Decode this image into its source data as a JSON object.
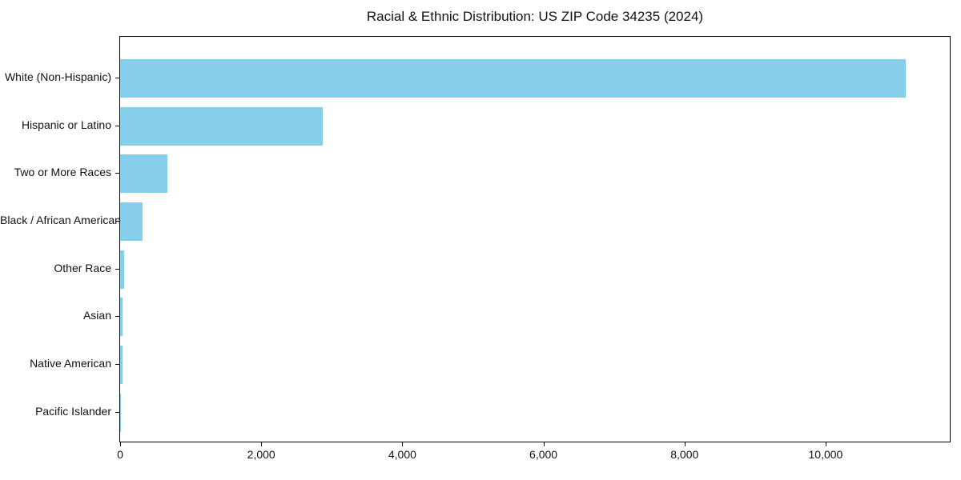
{
  "title": "Racial & Ethnic Distribution: US ZIP Code 34235 (2024)",
  "chart_data": {
    "type": "bar",
    "orientation": "horizontal",
    "title": "Racial & Ethnic Distribution: US ZIP Code 34235 (2024)",
    "xlabel": "",
    "ylabel": "",
    "categories": [
      "White (Non-Hispanic)",
      "Hispanic or Latino",
      "Two or More Races",
      "Black / African American",
      "Other Race",
      "Asian",
      "Native American",
      "Pacific Islander"
    ],
    "values": [
      11140,
      2870,
      670,
      316,
      56,
      34,
      30,
      5
    ],
    "xlim": [
      0,
      11760
    ],
    "xticks": [
      0,
      2000,
      4000,
      6000,
      8000,
      10000
    ],
    "xtick_labels": [
      "0",
      "2,000",
      "4,000",
      "6,000",
      "8,000",
      "10,000"
    ],
    "bar_color": "#87CEEB",
    "grid": false,
    "legend_position": "none"
  }
}
